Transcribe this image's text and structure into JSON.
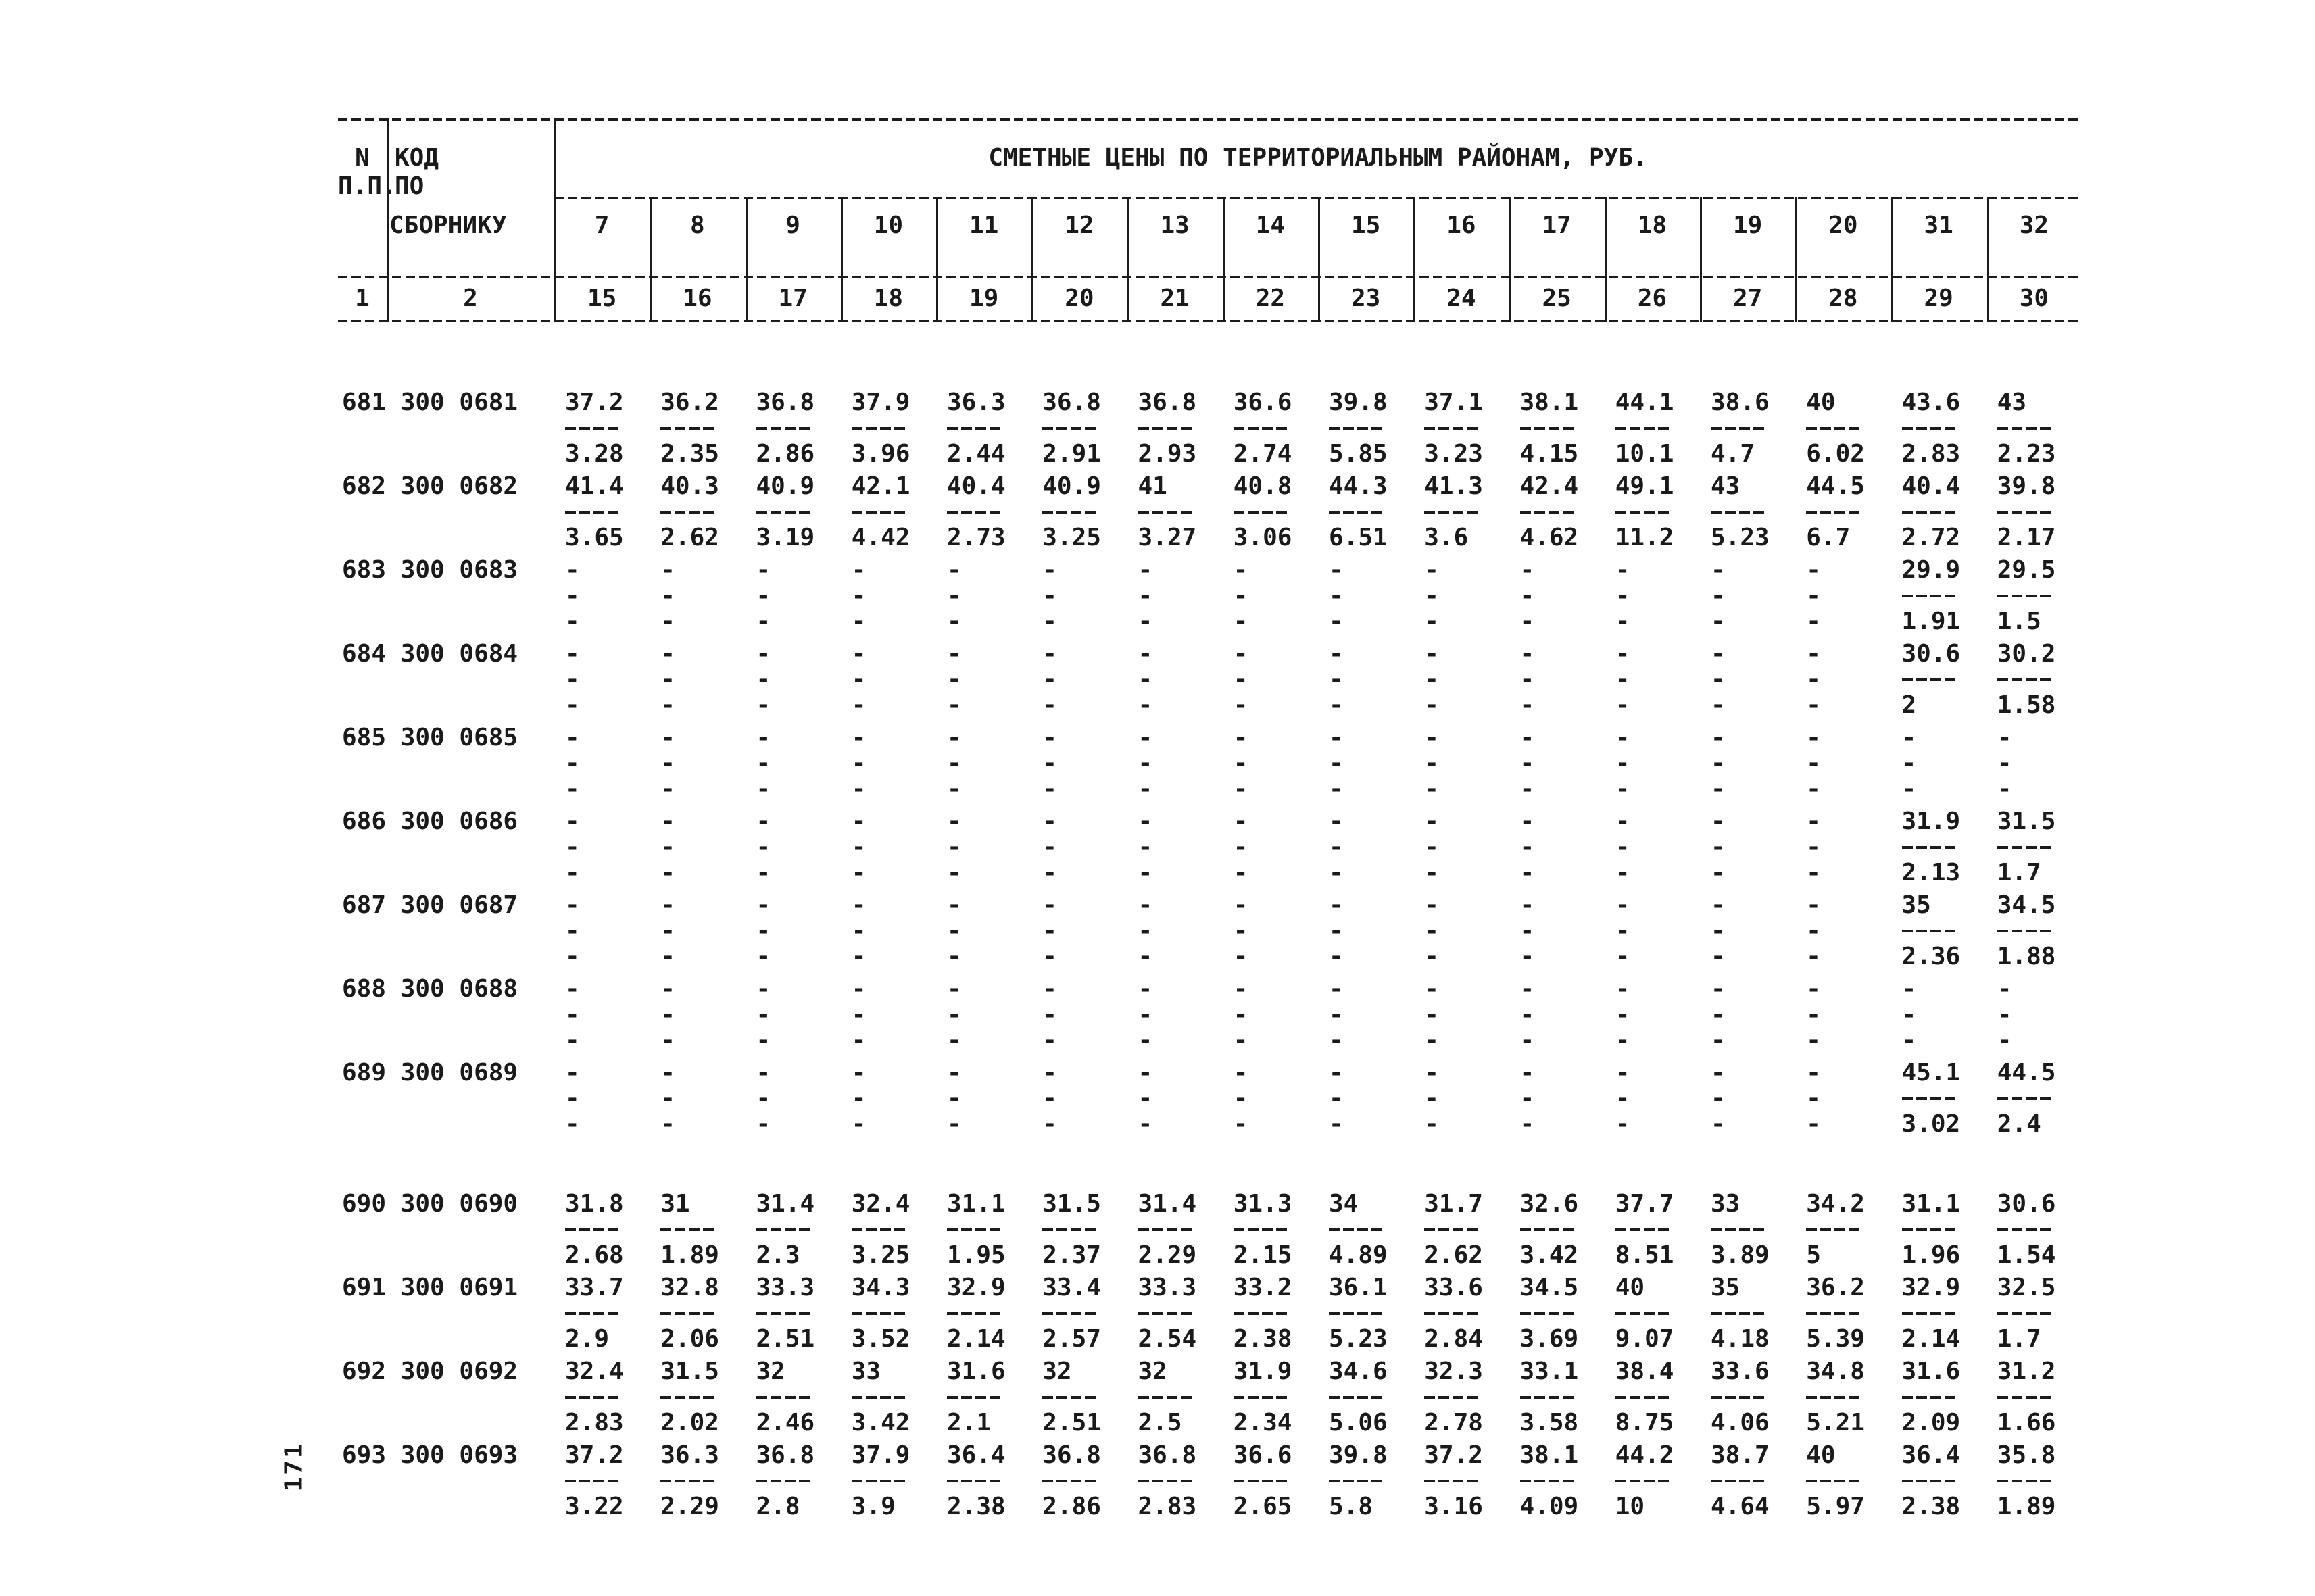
{
  "page_number": "171",
  "header": {
    "col_n_line1": "N",
    "col_n_line2": "П.П.",
    "col_code_line1": "КОД",
    "col_code_line2": "ПО",
    "col_code_line3": "СБОРНИКУ",
    "title": "СМЕТНЫЕ ЦЕНЫ ПО ТЕРРИТОРИАЛЬНЫМ РАЙОНАМ, РУБ.",
    "sub_col1": "1",
    "sub_col2": "2",
    "district_row1": [
      "7",
      "8",
      "9",
      "10",
      "11",
      "12",
      "13",
      "14",
      "15",
      "16",
      "17",
      "18",
      "19",
      "20",
      "31",
      "32"
    ],
    "district_row2": [
      "15",
      "16",
      "17",
      "18",
      "19",
      "20",
      "21",
      "22",
      "23",
      "24",
      "25",
      "26",
      "27",
      "28",
      "29",
      "30"
    ]
  },
  "rows": [
    {
      "code": "681 300 0681",
      "top": [
        "37.2",
        "36.2",
        "36.8",
        "37.9",
        "36.3",
        "36.8",
        "36.8",
        "36.6",
        "39.8",
        "37.1",
        "38.1",
        "44.1",
        "38.6",
        "40",
        "43.6",
        "43"
      ],
      "bottom": [
        "3.28",
        "2.35",
        "2.86",
        "3.96",
        "2.44",
        "2.91",
        "2.93",
        "2.74",
        "5.85",
        "3.23",
        "4.15",
        "10.1",
        "4.7",
        "6.02",
        "2.83",
        "2.23"
      ]
    },
    {
      "code": "682 300 0682",
      "top": [
        "41.4",
        "40.3",
        "40.9",
        "42.1",
        "40.4",
        "40.9",
        "41",
        "40.8",
        "44.3",
        "41.3",
        "42.4",
        "49.1",
        "43",
        "44.5",
        "40.4",
        "39.8"
      ],
      "bottom": [
        "3.65",
        "2.62",
        "3.19",
        "4.42",
        "2.73",
        "3.25",
        "3.27",
        "3.06",
        "6.51",
        "3.6",
        "4.62",
        "11.2",
        "5.23",
        "6.7",
        "2.72",
        "2.17"
      ]
    },
    {
      "code": "683 300 0683",
      "top": [
        "-",
        "-",
        "-",
        "-",
        "-",
        "-",
        "-",
        "-",
        "-",
        "-",
        "-",
        "-",
        "-",
        "-",
        "29.9",
        "29.5"
      ],
      "bottom": [
        "-",
        "-",
        "-",
        "-",
        "-",
        "-",
        "-",
        "-",
        "-",
        "-",
        "-",
        "-",
        "-",
        "-",
        "1.91",
        "1.5"
      ]
    },
    {
      "code": "684 300 0684",
      "top": [
        "-",
        "-",
        "-",
        "-",
        "-",
        "-",
        "-",
        "-",
        "-",
        "-",
        "-",
        "-",
        "-",
        "-",
        "30.6",
        "30.2"
      ],
      "bottom": [
        "-",
        "-",
        "-",
        "-",
        "-",
        "-",
        "-",
        "-",
        "-",
        "-",
        "-",
        "-",
        "-",
        "-",
        "2",
        "1.58"
      ]
    },
    {
      "code": "685 300 0685",
      "top": [
        "-",
        "-",
        "-",
        "-",
        "-",
        "-",
        "-",
        "-",
        "-",
        "-",
        "-",
        "-",
        "-",
        "-",
        "-",
        "-"
      ],
      "bottom": [
        "-",
        "-",
        "-",
        "-",
        "-",
        "-",
        "-",
        "-",
        "-",
        "-",
        "-",
        "-",
        "-",
        "-",
        "-",
        "-"
      ]
    },
    {
      "code": "686 300 0686",
      "top": [
        "-",
        "-",
        "-",
        "-",
        "-",
        "-",
        "-",
        "-",
        "-",
        "-",
        "-",
        "-",
        "-",
        "-",
        "31.9",
        "31.5"
      ],
      "bottom": [
        "-",
        "-",
        "-",
        "-",
        "-",
        "-",
        "-",
        "-",
        "-",
        "-",
        "-",
        "-",
        "-",
        "-",
        "2.13",
        "1.7"
      ]
    },
    {
      "code": "687 300 0687",
      "top": [
        "-",
        "-",
        "-",
        "-",
        "-",
        "-",
        "-",
        "-",
        "-",
        "-",
        "-",
        "-",
        "-",
        "-",
        "35",
        "34.5"
      ],
      "bottom": [
        "-",
        "-",
        "-",
        "-",
        "-",
        "-",
        "-",
        "-",
        "-",
        "-",
        "-",
        "-",
        "-",
        "-",
        "2.36",
        "1.88"
      ]
    },
    {
      "code": "688 300 0688",
      "top": [
        "-",
        "-",
        "-",
        "-",
        "-",
        "-",
        "-",
        "-",
        "-",
        "-",
        "-",
        "-",
        "-",
        "-",
        "-",
        "-"
      ],
      "bottom": [
        "-",
        "-",
        "-",
        "-",
        "-",
        "-",
        "-",
        "-",
        "-",
        "-",
        "-",
        "-",
        "-",
        "-",
        "-",
        "-"
      ]
    },
    {
      "code": "689 300 0689",
      "top": [
        "-",
        "-",
        "-",
        "-",
        "-",
        "-",
        "-",
        "-",
        "-",
        "-",
        "-",
        "-",
        "-",
        "-",
        "45.1",
        "44.5"
      ],
      "bottom": [
        "-",
        "-",
        "-",
        "-",
        "-",
        "-",
        "-",
        "-",
        "-",
        "-",
        "-",
        "-",
        "-",
        "-",
        "3.02",
        "2.4"
      ]
    },
    {
      "code": "690 300 0690",
      "gap_before": true,
      "top": [
        "31.8",
        "31",
        "31.4",
        "32.4",
        "31.1",
        "31.5",
        "31.4",
        "31.3",
        "34",
        "31.7",
        "32.6",
        "37.7",
        "33",
        "34.2",
        "31.1",
        "30.6"
      ],
      "bottom": [
        "2.68",
        "1.89",
        "2.3",
        "3.25",
        "1.95",
        "2.37",
        "2.29",
        "2.15",
        "4.89",
        "2.62",
        "3.42",
        "8.51",
        "3.89",
        "5",
        "1.96",
        "1.54"
      ]
    },
    {
      "code": "691 300 0691",
      "top": [
        "33.7",
        "32.8",
        "33.3",
        "34.3",
        "32.9",
        "33.4",
        "33.3",
        "33.2",
        "36.1",
        "33.6",
        "34.5",
        "40",
        "35",
        "36.2",
        "32.9",
        "32.5"
      ],
      "bottom": [
        "2.9",
        "2.06",
        "2.51",
        "3.52",
        "2.14",
        "2.57",
        "2.54",
        "2.38",
        "5.23",
        "2.84",
        "3.69",
        "9.07",
        "4.18",
        "5.39",
        "2.14",
        "1.7"
      ]
    },
    {
      "code": "692 300 0692",
      "top": [
        "32.4",
        "31.5",
        "32",
        "33",
        "31.6",
        "32",
        "32",
        "31.9",
        "34.6",
        "32.3",
        "33.1",
        "38.4",
        "33.6",
        "34.8",
        "31.6",
        "31.2"
      ],
      "bottom": [
        "2.83",
        "2.02",
        "2.46",
        "3.42",
        "2.1",
        "2.51",
        "2.5",
        "2.34",
        "5.06",
        "2.78",
        "3.58",
        "8.75",
        "4.06",
        "5.21",
        "2.09",
        "1.66"
      ]
    },
    {
      "code": "693 300 0693",
      "top": [
        "37.2",
        "36.3",
        "36.8",
        "37.9",
        "36.4",
        "36.8",
        "36.8",
        "36.6",
        "39.8",
        "37.2",
        "38.1",
        "44.2",
        "38.7",
        "40",
        "36.4",
        "35.8"
      ],
      "bottom": [
        "3.22",
        "2.29",
        "2.8",
        "3.9",
        "2.38",
        "2.86",
        "2.83",
        "2.65",
        "5.8",
        "3.16",
        "4.09",
        "10",
        "4.64",
        "5.97",
        "2.38",
        "1.89"
      ]
    }
  ]
}
